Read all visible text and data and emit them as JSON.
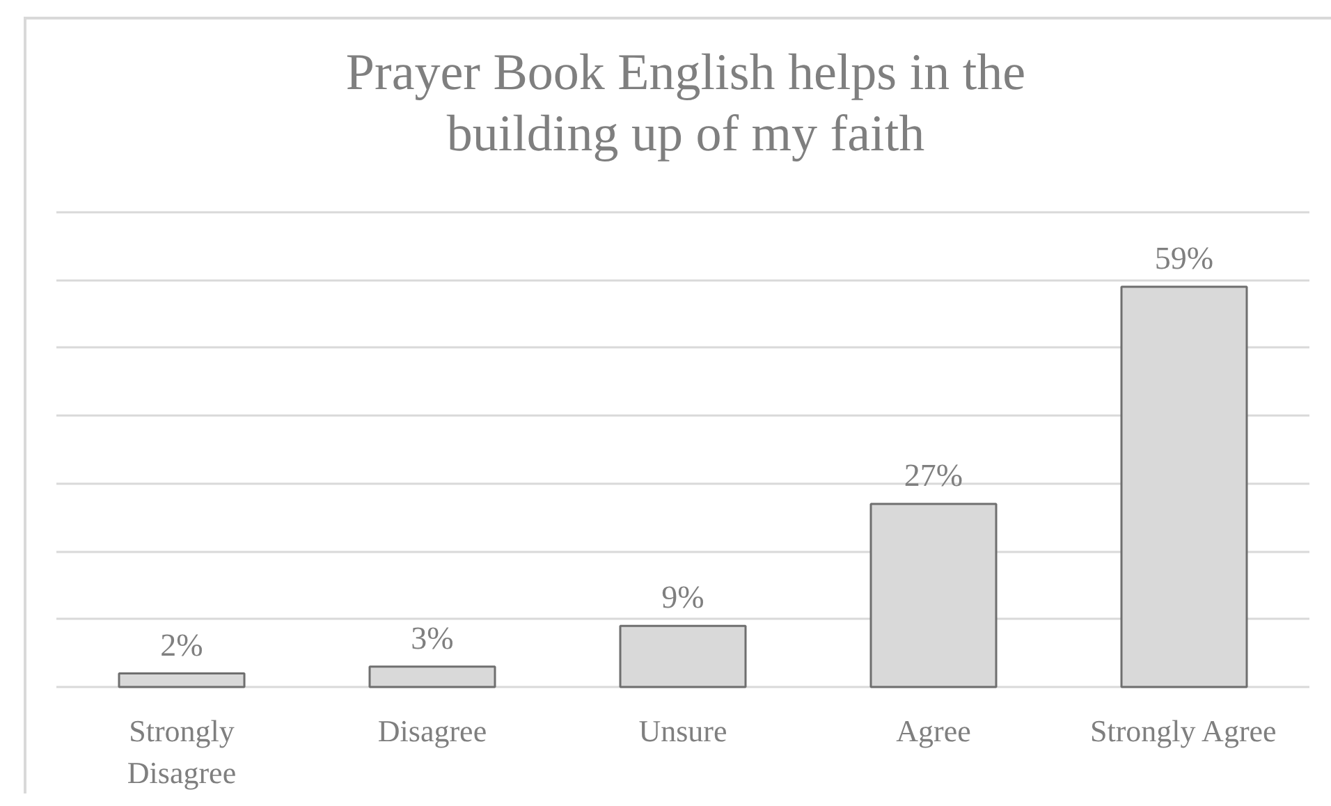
{
  "chart_data": {
    "type": "bar",
    "title": "Prayer Book English helps in the\nbuilding up of my faith",
    "categories": [
      "Strongly\nDisagree",
      "Disagree",
      "Unsure",
      "Agree",
      "Strongly Agree"
    ],
    "values": [
      2,
      3,
      9,
      27,
      59
    ],
    "value_labels": [
      "2%",
      "3%",
      "9%",
      "27%",
      "59%"
    ],
    "color": "#d9d9d9",
    "ylim": [
      0,
      70
    ],
    "yticks": [
      {
        "value": 0,
        "label": null
      },
      {
        "value": 10,
        "label": null
      },
      {
        "value": 20,
        "label": null
      },
      {
        "value": 30,
        "label": null
      },
      {
        "value": 40,
        "label": null
      },
      {
        "value": 50,
        "label": null
      },
      {
        "value": 60,
        "label": null
      },
      {
        "value": 70,
        "label": null
      }
    ],
    "grid": "y",
    "tick_labels": "x"
  }
}
